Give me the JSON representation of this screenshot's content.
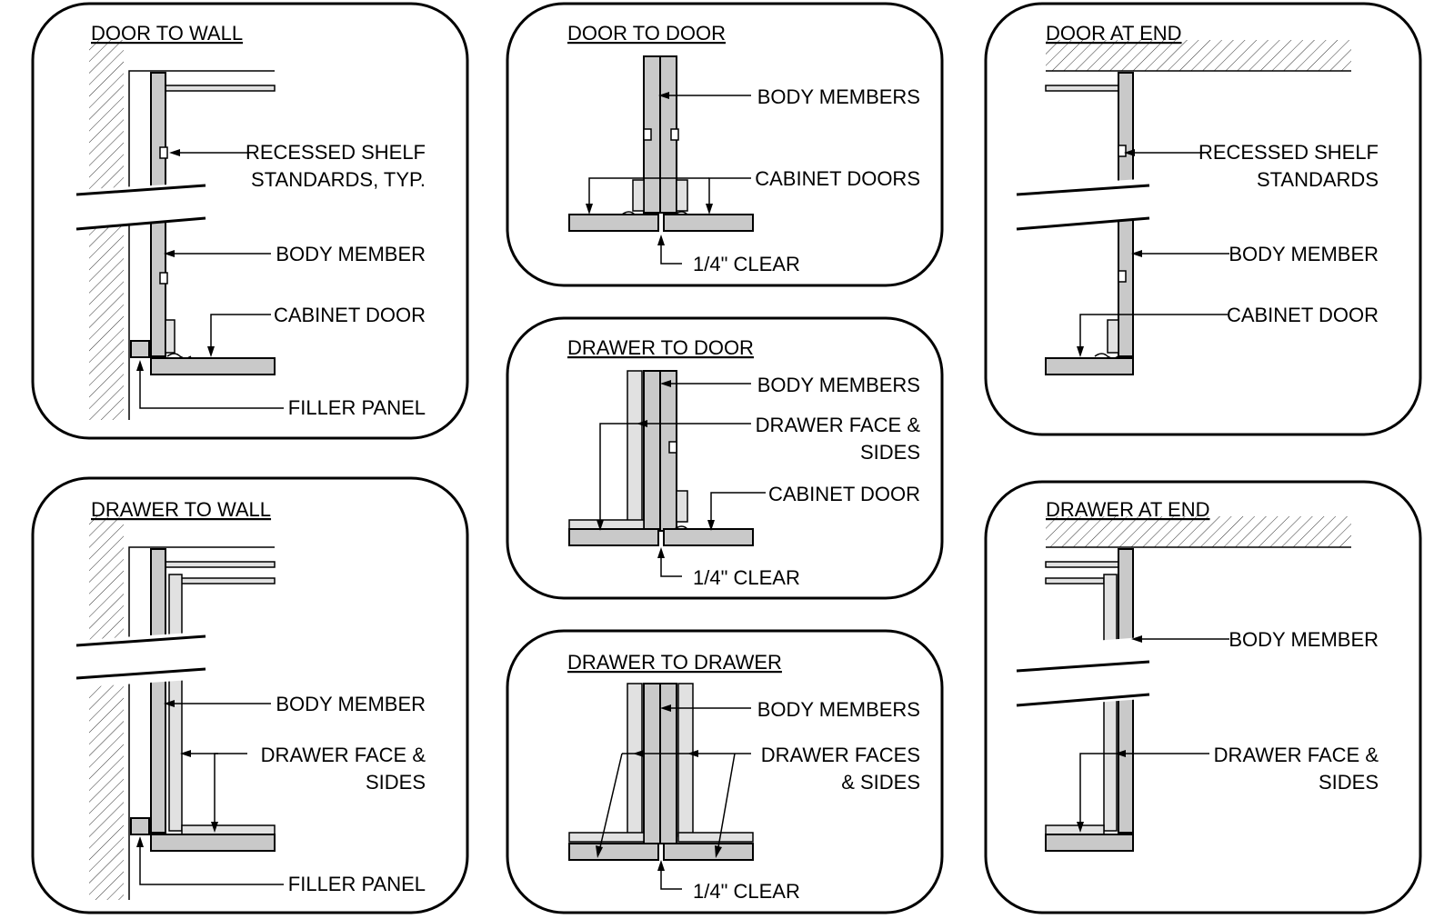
{
  "panels": [
    {
      "title": "DOOR TO WALL",
      "labels": {
        "shelf_1": "RECESSED SHELF",
        "shelf_2": "STANDARDS, TYP.",
        "body": "BODY MEMBER",
        "door": "CABINET DOOR",
        "filler": "FILLER PANEL"
      }
    },
    {
      "title": "DOOR TO DOOR",
      "labels": {
        "body": "BODY MEMBERS",
        "doors": "CABINET DOORS",
        "clear": "1/4\" CLEAR"
      }
    },
    {
      "title": "DOOR AT END",
      "labels": {
        "shelf_1": "RECESSED SHELF",
        "shelf_2": "STANDARDS",
        "body": "BODY MEMBER",
        "door": "CABINET DOOR"
      }
    },
    {
      "title": "DRAWER TO DOOR",
      "labels": {
        "body": "BODY MEMBERS",
        "face_1": "DRAWER FACE &",
        "face_2": "SIDES",
        "door": "CABINET DOOR",
        "clear": "1/4\" CLEAR"
      }
    },
    {
      "title": "DRAWER TO WALL",
      "labels": {
        "body": "BODY MEMBER",
        "face_1": "DRAWER FACE &",
        "face_2": "SIDES",
        "filler": "FILLER PANEL"
      }
    },
    {
      "title": "DRAWER TO DRAWER",
      "labels": {
        "body": "BODY MEMBERS",
        "faces_1": "DRAWER FACES",
        "faces_2": "& SIDES",
        "clear": "1/4\" CLEAR"
      }
    },
    {
      "title": "DRAWER AT END",
      "labels": {
        "body": "BODY MEMBER",
        "face_1": "DRAWER FACE &",
        "face_2": "SIDES"
      }
    }
  ]
}
